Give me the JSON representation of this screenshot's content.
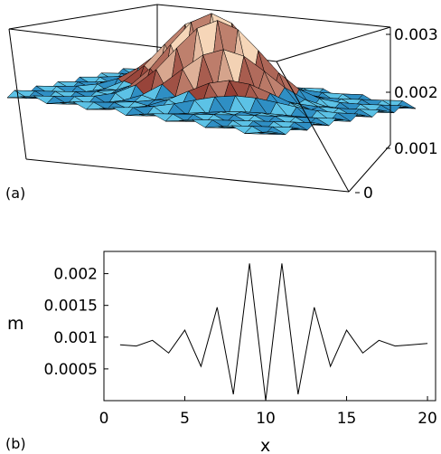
{
  "chart_data": [
    {
      "panel_label": "(a)",
      "type": "surface",
      "z_ticks": [
        "0",
        "0.001",
        "0.002",
        "0.003"
      ],
      "zlim": [
        0,
        0.003
      ],
      "grid_size": [
        21,
        21
      ],
      "peak": 0.0031,
      "colors": {
        "low": "#5cc2e6",
        "low_dark": "#2f8fc4",
        "high": "#f6d6b8",
        "high_dark": "#7a1612",
        "edge": "#000000"
      }
    },
    {
      "panel_label": "(b)",
      "type": "line",
      "xlabel": "x",
      "ylabel": "m",
      "xlim": [
        0,
        20.5
      ],
      "ylim": [
        0,
        0.00235
      ],
      "x_ticks": [
        0,
        5,
        10,
        15,
        20
      ],
      "x_tick_labels": [
        "0",
        "5",
        "10",
        "15",
        "20"
      ],
      "y_ticks": [
        0.0005,
        0.001,
        0.0015,
        0.002
      ],
      "y_tick_labels": [
        "0.0005",
        "0.001",
        "0.0015",
        "0.002"
      ],
      "grid": false,
      "series": [
        {
          "x": [
            1,
            2,
            3,
            4,
            5,
            6,
            7,
            8,
            9,
            10,
            11,
            12,
            13,
            14,
            15,
            16,
            17,
            18,
            19,
            20
          ],
          "y": [
            0.00088,
            0.00086,
            0.00095,
            0.00075,
            0.00111,
            0.00054,
            0.00147,
            0.0001,
            0.00216,
            0.0,
            0.00216,
            0.0001,
            0.00147,
            0.00054,
            0.00111,
            0.00075,
            0.00095,
            0.00086,
            0.00088,
            0.0009
          ]
        }
      ],
      "colors": {
        "line": "#000000",
        "frame": "#000000"
      }
    }
  ]
}
